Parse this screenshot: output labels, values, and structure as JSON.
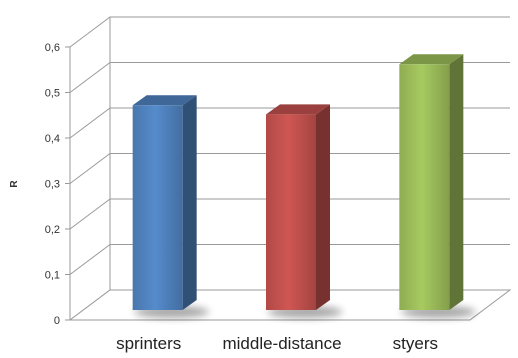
{
  "chart_data": {
    "type": "bar",
    "style": "3d-column",
    "categories": [
      "sprinters",
      "middle-distance",
      "styers"
    ],
    "values": [
      0.45,
      0.43,
      0.54
    ],
    "colors": [
      "#4f81bd",
      "#c0504d",
      "#9bbb59"
    ],
    "ylabel": "R",
    "ylim": [
      0,
      0.6
    ],
    "yticks": [
      "0",
      "0,1",
      "0,2",
      "0,3",
      "0,4",
      "0,5",
      "0,6"
    ],
    "grid": true,
    "legend": "none"
  }
}
